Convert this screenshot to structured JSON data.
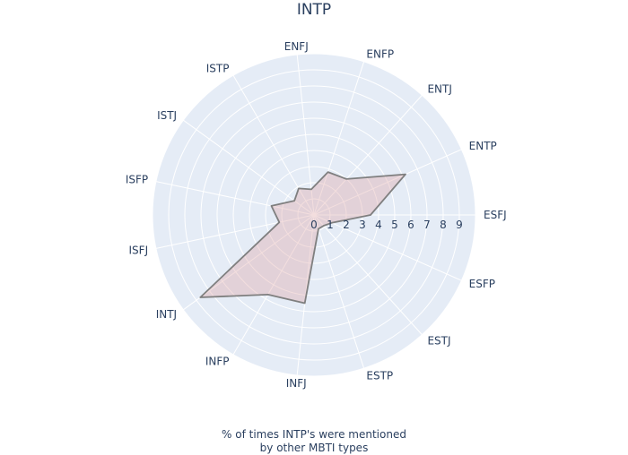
{
  "chart_data": {
    "type": "radar",
    "title": "INTP",
    "caption_line1": "% of times INTP's were mentioned",
    "caption_line2": "by other MBTI types",
    "radial_range": [
      0,
      10
    ],
    "radial_ticks": [
      "0",
      "1",
      "2",
      "3",
      "4",
      "5",
      "6",
      "7",
      "8",
      "9"
    ],
    "categories": [
      "ESFJ",
      "ENTP",
      "ENTJ",
      "ENFP",
      "ENFJ",
      "ISTP",
      "ISTJ",
      "ISFP",
      "ISFJ",
      "INTJ",
      "INFP",
      "INFJ",
      "ESTP",
      "ESTJ",
      "ESFP"
    ],
    "values": [
      3.5,
      6.2,
      3.0,
      2.8,
      1.6,
      1.9,
      1.5,
      2.7,
      2.2,
      8.7,
      5.7,
      5.5,
      0.9,
      0.9,
      1.2
    ],
    "grid": true,
    "colors": {
      "background": "#e5ecf6",
      "grid": "#ffffff",
      "line": "#7f7f7f",
      "fill": "rgba(220,160,160,0.35)",
      "text": "#2a3f5f"
    }
  }
}
